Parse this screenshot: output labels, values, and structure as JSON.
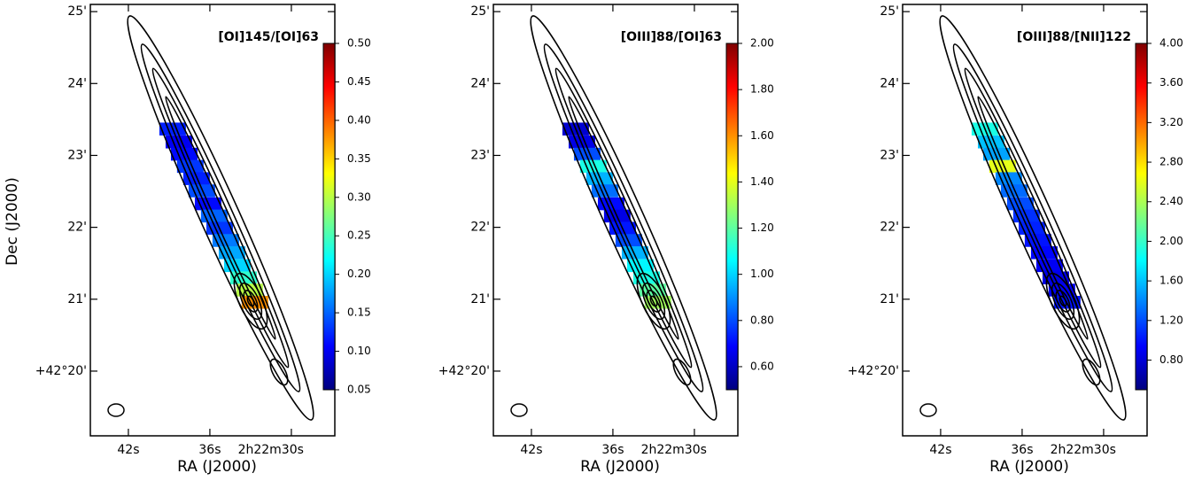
{
  "chart_data": [
    {
      "type": "heatmap",
      "title": "[OI]145/[OI]63",
      "xlabel": "RA (J2000)",
      "ylabel": "Dec (J2000)",
      "xlim": [
        44.8,
        26.8
      ],
      "ylim": [
        19.1,
        25.1
      ],
      "xticks": [
        {
          "value": 42,
          "label": "42s"
        },
        {
          "value": 36,
          "label": "36s"
        },
        {
          "value": 30,
          "label": "2h22m30s"
        }
      ],
      "yticks": [
        {
          "value": 25,
          "label": "25'"
        },
        {
          "value": 24,
          "label": "24'"
        },
        {
          "value": 23,
          "label": "23'"
        },
        {
          "value": 22,
          "label": "22'"
        },
        {
          "value": 21,
          "label": "21'"
        },
        {
          "value": 20,
          "label": "+42°20'"
        }
      ],
      "x": [
        38.74,
        38.28,
        37.89,
        37.44,
        36.98,
        36.59,
        36.13,
        35.68,
        35.28,
        34.83,
        34.37,
        33.98,
        33.52,
        33.07,
        32.68
      ],
      "y": [
        23.37,
        23.19,
        23.02,
        22.85,
        22.68,
        22.51,
        22.33,
        22.16,
        21.99,
        21.82,
        21.65,
        21.47,
        21.3,
        21.13,
        20.96
      ],
      "values": [
        0.12,
        0.1,
        0.11,
        0.13,
        0.12,
        0.14,
        0.11,
        0.15,
        0.13,
        0.16,
        0.18,
        0.2,
        0.24,
        0.3,
        0.38
      ],
      "colormap": "jet",
      "clim": [
        0.05,
        0.5
      ],
      "cticks": [
        0.05,
        {
          "value": 0.1,
          "label": "0.10"
        },
        0.15,
        {
          "value": 0.2,
          "label": "0.20"
        },
        0.25,
        {
          "value": 0.3,
          "label": "0.30"
        },
        0.35,
        {
          "value": 0.4,
          "label": "0.40"
        },
        0.45,
        {
          "value": 0.5,
          "label": "0.50"
        }
      ]
    },
    {
      "type": "heatmap",
      "title": "[OIII]88/[OI]63",
      "xlabel": "RA (J2000)",
      "xlim": [
        44.8,
        26.8
      ],
      "ylim": [
        19.1,
        25.1
      ],
      "xticks": [
        {
          "value": 42,
          "label": "42s"
        },
        {
          "value": 36,
          "label": "36s"
        },
        {
          "value": 30,
          "label": "2h22m30s"
        }
      ],
      "yticks": [
        {
          "value": 25,
          "label": "25'"
        },
        {
          "value": 24,
          "label": "24'"
        },
        {
          "value": 23,
          "label": "23'"
        },
        {
          "value": 22,
          "label": "22'"
        },
        {
          "value": 21,
          "label": "21'"
        },
        {
          "value": 20,
          "label": "+42°20'"
        }
      ],
      "x": [
        38.74,
        38.28,
        37.89,
        37.44,
        36.98,
        36.59,
        36.13,
        35.68,
        35.28,
        34.83,
        34.37,
        33.98,
        33.52,
        33.07,
        32.68
      ],
      "y": [
        23.37,
        23.19,
        23.02,
        22.85,
        22.68,
        22.51,
        22.33,
        22.16,
        21.99,
        21.82,
        21.65,
        21.47,
        21.3,
        21.13,
        20.96
      ],
      "values": [
        0.62,
        0.65,
        0.8,
        1.1,
        0.95,
        0.85,
        0.7,
        0.65,
        0.72,
        0.8,
        0.95,
        1.05,
        1.1,
        1.2,
        1.3
      ],
      "colormap": "jet",
      "clim": [
        0.5,
        2.0
      ],
      "cticks": [
        {
          "value": 0.6,
          "label": "0.60"
        },
        {
          "value": 0.8,
          "label": "0.80"
        },
        {
          "value": 1.0,
          "label": "1.00"
        },
        {
          "value": 1.2,
          "label": "1.20"
        },
        {
          "value": 1.4,
          "label": "1.40"
        },
        {
          "value": 1.6,
          "label": "1.60"
        },
        {
          "value": 1.8,
          "label": "1.80"
        },
        {
          "value": 2.0,
          "label": "2.00"
        }
      ]
    },
    {
      "type": "heatmap",
      "title": "[OIII]88/[NII]122",
      "xlabel": "RA (J2000)",
      "xlim": [
        44.8,
        26.8
      ],
      "ylim": [
        19.1,
        25.1
      ],
      "xticks": [
        {
          "value": 42,
          "label": "42s"
        },
        {
          "value": 36,
          "label": "36s"
        },
        {
          "value": 30,
          "label": "2h22m30s"
        }
      ],
      "yticks": [
        {
          "value": 25,
          "label": "25'"
        },
        {
          "value": 24,
          "label": "24'"
        },
        {
          "value": 23,
          "label": "23'"
        },
        {
          "value": 22,
          "label": "22'"
        },
        {
          "value": 21,
          "label": "21'"
        },
        {
          "value": 20,
          "label": "+42°20'"
        }
      ],
      "x": [
        38.74,
        38.28,
        37.89,
        37.44,
        36.98,
        36.59,
        36.13,
        35.68,
        35.28,
        34.83,
        34.37,
        33.98,
        33.52,
        33.07,
        32.68
      ],
      "y": [
        23.37,
        23.19,
        23.02,
        22.85,
        22.68,
        22.51,
        22.33,
        22.16,
        21.99,
        21.82,
        21.65,
        21.47,
        21.3,
        21.13,
        20.96
      ],
      "values": [
        1.9,
        1.6,
        1.5,
        2.6,
        1.4,
        1.3,
        1.2,
        1.1,
        1.05,
        1.0,
        0.95,
        0.9,
        0.85,
        0.9,
        1.0
      ],
      "colormap": "jet",
      "clim": [
        0.5,
        4.0
      ],
      "cticks": [
        {
          "value": 0.8,
          "label": "0.80"
        },
        {
          "value": 1.2,
          "label": "1.20"
        },
        {
          "value": 1.6,
          "label": "1.60"
        },
        {
          "value": 2.0,
          "label": "2.00"
        },
        {
          "value": 2.4,
          "label": "2.40"
        },
        {
          "value": 2.8,
          "label": "2.80"
        },
        {
          "value": 3.2,
          "label": "3.20"
        },
        {
          "value": 3.6,
          "label": "3.60"
        },
        {
          "value": 4.0,
          "label": "4.00"
        }
      ]
    }
  ]
}
